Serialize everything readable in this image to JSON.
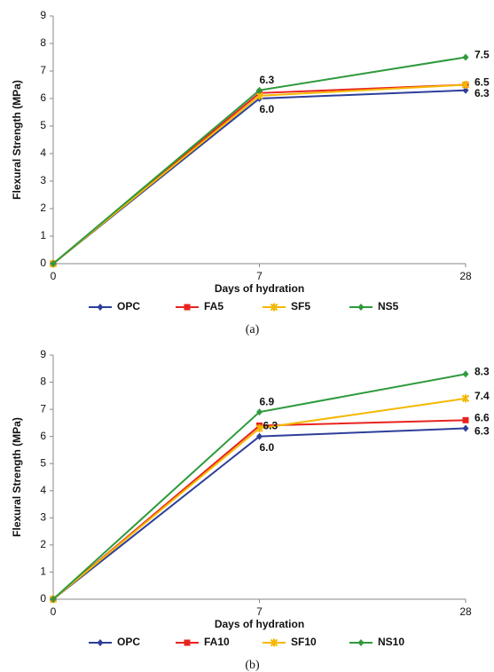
{
  "chart_data": [
    {
      "type": "line",
      "caption": "(a)",
      "x_label": "Days of hydration",
      "y_label": "Flexural Strength (MPa)",
      "categories": [
        "0",
        "7",
        "28"
      ],
      "ylim": [
        0,
        9
      ],
      "yticks": [
        0,
        1,
        2,
        3,
        4,
        5,
        6,
        7,
        8,
        9
      ],
      "series": [
        {
          "name": "OPC",
          "color": "#2e3f9a",
          "marker": "diamond",
          "values": [
            0,
            6.0,
            6.3
          ],
          "value_labels": [
            null,
            "6.0",
            "6.3"
          ]
        },
        {
          "name": "FA5",
          "color": "#e8231f",
          "marker": "square",
          "values": [
            0,
            6.2,
            6.5
          ],
          "value_labels": [
            null,
            null,
            null
          ]
        },
        {
          "name": "SF5",
          "color": "#f5b800",
          "marker": "star",
          "values": [
            0,
            6.1,
            6.5
          ],
          "value_labels": [
            null,
            null,
            "6.5"
          ]
        },
        {
          "name": "NS5",
          "color": "#2e9a3c",
          "marker": "diamond",
          "values": [
            0,
            6.3,
            7.5
          ],
          "value_labels": [
            null,
            "6.3",
            "7.5"
          ]
        }
      ]
    },
    {
      "type": "line",
      "caption": "(b)",
      "x_label": "Days of hydration",
      "y_label": "Flexural Strength (MPa)",
      "categories": [
        "0",
        "7",
        "28"
      ],
      "ylim": [
        0,
        9
      ],
      "yticks": [
        0,
        1,
        2,
        3,
        4,
        5,
        6,
        7,
        8,
        9
      ],
      "series": [
        {
          "name": "OPC",
          "color": "#2e3f9a",
          "marker": "diamond",
          "values": [
            0,
            6.0,
            6.3
          ],
          "value_labels": [
            null,
            "6.0",
            "6.3"
          ]
        },
        {
          "name": "FA10",
          "color": "#e8231f",
          "marker": "square",
          "values": [
            0,
            6.4,
            6.6
          ],
          "value_labels": [
            null,
            null,
            "6.6"
          ]
        },
        {
          "name": "SF10",
          "color": "#f5b800",
          "marker": "star",
          "values": [
            0,
            6.3,
            7.4
          ],
          "value_labels": [
            null,
            "6.3",
            "7.4"
          ]
        },
        {
          "name": "NS10",
          "color": "#2e9a3c",
          "marker": "diamond",
          "values": [
            0,
            6.9,
            8.3
          ],
          "value_labels": [
            null,
            "6.9",
            "8.3"
          ]
        }
      ]
    }
  ]
}
